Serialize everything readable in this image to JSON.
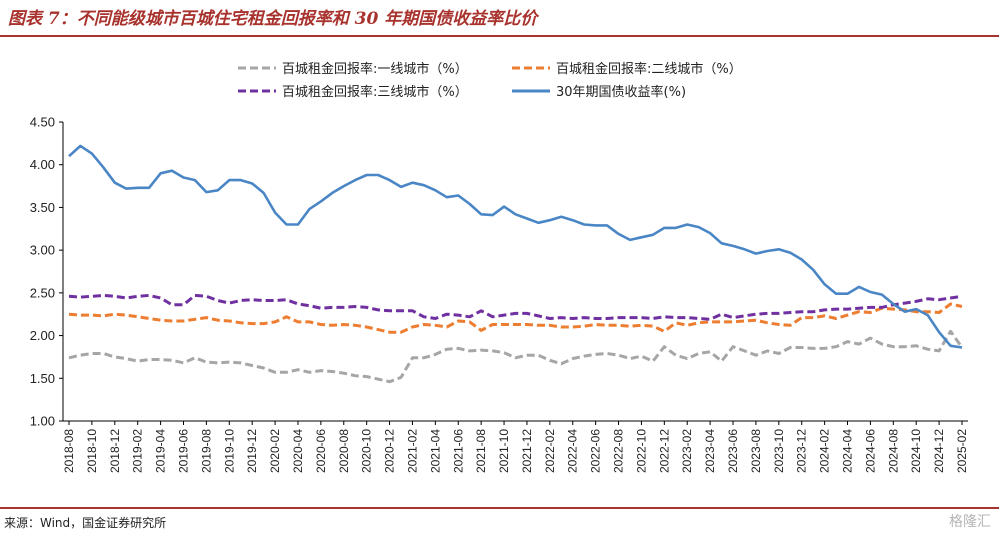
{
  "header": {
    "title": "图表 7：不同能级城市百城住宅租金回报率和 30 年期国债收益率比价"
  },
  "footer": {
    "source": "来源：Wind，国金证券研究所",
    "watermark": "格隆汇"
  },
  "colors": {
    "accent": "#a8322d",
    "tier1": "#a6a6a6",
    "tier2": "#ed7d31",
    "tier3": "#7030a0",
    "bond": "#4a86c5"
  },
  "chart_data": {
    "type": "line",
    "title": "",
    "xlabel": "",
    "ylabel": "",
    "ylim": [
      1.0,
      4.5
    ],
    "yticks": [
      "4.50",
      "4.00",
      "3.50",
      "3.00",
      "2.50",
      "2.00",
      "1.50",
      "1.00"
    ],
    "grid": false,
    "legend_position": "top",
    "x": [
      "2018-08",
      "2018-09",
      "2018-10",
      "2018-11",
      "2018-12",
      "2019-01",
      "2019-02",
      "2019-03",
      "2019-04",
      "2019-05",
      "2019-06",
      "2019-07",
      "2019-08",
      "2019-09",
      "2019-10",
      "2019-11",
      "2019-12",
      "2020-01",
      "2020-02",
      "2020-03",
      "2020-04",
      "2020-05",
      "2020-06",
      "2020-07",
      "2020-08",
      "2020-09",
      "2020-10",
      "2020-11",
      "2020-12",
      "2021-01",
      "2021-02",
      "2021-03",
      "2021-04",
      "2021-05",
      "2021-06",
      "2021-07",
      "2021-08",
      "2021-09",
      "2021-10",
      "2021-11",
      "2021-12",
      "2022-01",
      "2022-02",
      "2022-03",
      "2022-04",
      "2022-05",
      "2022-06",
      "2022-07",
      "2022-08",
      "2022-09",
      "2022-10",
      "2022-11",
      "2022-12",
      "2023-01",
      "2023-02",
      "2023-03",
      "2023-04",
      "2023-05",
      "2023-06",
      "2023-07",
      "2023-08",
      "2023-09",
      "2023-10",
      "2023-11",
      "2023-12",
      "2024-01",
      "2024-02",
      "2024-03",
      "2024-04",
      "2024-05",
      "2024-06",
      "2024-07",
      "2024-08",
      "2024-09",
      "2024-10",
      "2024-11",
      "2024-12",
      "2025-01",
      "2025-02"
    ],
    "x_tick_labels": [
      "2018-08",
      "2018-10",
      "2018-12",
      "2019-02",
      "2019-04",
      "2019-06",
      "2019-08",
      "2019-10",
      "2019-12",
      "2020-02",
      "2020-04",
      "2020-06",
      "2020-08",
      "2020-10",
      "2020-12",
      "2021-02",
      "2021-04",
      "2021-06",
      "2021-08",
      "2021-10",
      "2021-12",
      "2022-02",
      "2022-04",
      "2022-06",
      "2022-08",
      "2022-10",
      "2022-12",
      "2023-02",
      "2023-04",
      "2023-06",
      "2023-08",
      "2023-10",
      "2023-12",
      "2024-02",
      "2024-04",
      "2024-06",
      "2024-08",
      "2024-10",
      "2024-12",
      "2025-02"
    ],
    "series": [
      {
        "name": "百城租金回报率:一线城市（%）",
        "color": "#a6a6a6",
        "dash": "dashed",
        "values": [
          1.74,
          1.77,
          1.79,
          1.79,
          1.75,
          1.73,
          1.7,
          1.72,
          1.72,
          1.71,
          1.68,
          1.74,
          1.69,
          1.68,
          1.69,
          1.68,
          1.65,
          1.62,
          1.57,
          1.57,
          1.6,
          1.57,
          1.59,
          1.58,
          1.56,
          1.53,
          1.52,
          1.49,
          1.46,
          1.51,
          1.74,
          1.74,
          1.78,
          1.84,
          1.85,
          1.82,
          1.83,
          1.82,
          1.8,
          1.74,
          1.77,
          1.77,
          1.71,
          1.67,
          1.73,
          1.76,
          1.78,
          1.79,
          1.77,
          1.73,
          1.76,
          1.7,
          1.87,
          1.77,
          1.73,
          1.79,
          1.81,
          1.7,
          1.87,
          1.82,
          1.77,
          1.82,
          1.79,
          1.86,
          1.86,
          1.85,
          1.85,
          1.87,
          1.93,
          1.9,
          1.97,
          1.9,
          1.87,
          1.87,
          1.88,
          1.84,
          1.82,
          2.05,
          1.86
        ]
      },
      {
        "name": "百城租金回报率:二线城市（%）",
        "color": "#ed7d31",
        "dash": "dashed",
        "values": [
          2.25,
          2.24,
          2.24,
          2.23,
          2.25,
          2.24,
          2.22,
          2.2,
          2.18,
          2.17,
          2.17,
          2.19,
          2.21,
          2.18,
          2.17,
          2.15,
          2.14,
          2.14,
          2.16,
          2.22,
          2.16,
          2.16,
          2.13,
          2.12,
          2.13,
          2.12,
          2.1,
          2.07,
          2.04,
          2.04,
          2.1,
          2.13,
          2.12,
          2.1,
          2.17,
          2.16,
          2.06,
          2.13,
          2.13,
          2.13,
          2.13,
          2.12,
          2.12,
          2.1,
          2.1,
          2.11,
          2.13,
          2.12,
          2.12,
          2.11,
          2.12,
          2.11,
          2.05,
          2.15,
          2.12,
          2.15,
          2.16,
          2.16,
          2.16,
          2.17,
          2.18,
          2.15,
          2.13,
          2.12,
          2.21,
          2.21,
          2.23,
          2.2,
          2.24,
          2.28,
          2.27,
          2.32,
          2.31,
          2.3,
          2.28,
          2.28,
          2.27,
          2.37,
          2.34
        ]
      },
      {
        "name": "百城租金回报率:三线城市（%）",
        "color": "#7030a0",
        "dash": "dashed",
        "values": [
          2.46,
          2.45,
          2.46,
          2.47,
          2.46,
          2.44,
          2.46,
          2.47,
          2.44,
          2.36,
          2.36,
          2.47,
          2.46,
          2.41,
          2.38,
          2.41,
          2.42,
          2.41,
          2.41,
          2.42,
          2.37,
          2.35,
          2.32,
          2.33,
          2.33,
          2.34,
          2.33,
          2.3,
          2.29,
          2.29,
          2.29,
          2.22,
          2.2,
          2.25,
          2.24,
          2.22,
          2.29,
          2.22,
          2.24,
          2.26,
          2.26,
          2.23,
          2.2,
          2.21,
          2.2,
          2.21,
          2.2,
          2.2,
          2.21,
          2.21,
          2.21,
          2.2,
          2.22,
          2.21,
          2.21,
          2.2,
          2.19,
          2.25,
          2.21,
          2.23,
          2.25,
          2.26,
          2.26,
          2.27,
          2.28,
          2.28,
          2.3,
          2.31,
          2.31,
          2.32,
          2.33,
          2.33,
          2.36,
          2.38,
          2.4,
          2.43,
          2.42,
          2.44,
          2.46
        ]
      },
      {
        "name": "30年期国债收益率(%)",
        "color": "#4a86c5",
        "dash": "solid",
        "values": [
          4.1,
          4.22,
          4.13,
          3.97,
          3.79,
          3.72,
          3.73,
          3.73,
          3.9,
          3.93,
          3.85,
          3.82,
          3.68,
          3.7,
          3.82,
          3.82,
          3.78,
          3.67,
          3.44,
          3.3,
          3.3,
          3.48,
          3.57,
          3.67,
          3.75,
          3.82,
          3.88,
          3.88,
          3.82,
          3.74,
          3.79,
          3.76,
          3.7,
          3.62,
          3.64,
          3.54,
          3.42,
          3.41,
          3.51,
          3.42,
          3.37,
          3.32,
          3.35,
          3.39,
          3.35,
          3.3,
          3.29,
          3.29,
          3.19,
          3.12,
          3.15,
          3.18,
          3.26,
          3.26,
          3.3,
          3.27,
          3.2,
          3.08,
          3.05,
          3.01,
          2.96,
          2.99,
          3.01,
          2.97,
          2.89,
          2.77,
          2.6,
          2.49,
          2.49,
          2.57,
          2.51,
          2.48,
          2.37,
          2.28,
          2.31,
          2.24,
          2.04,
          1.88,
          1.86
        ]
      }
    ]
  }
}
